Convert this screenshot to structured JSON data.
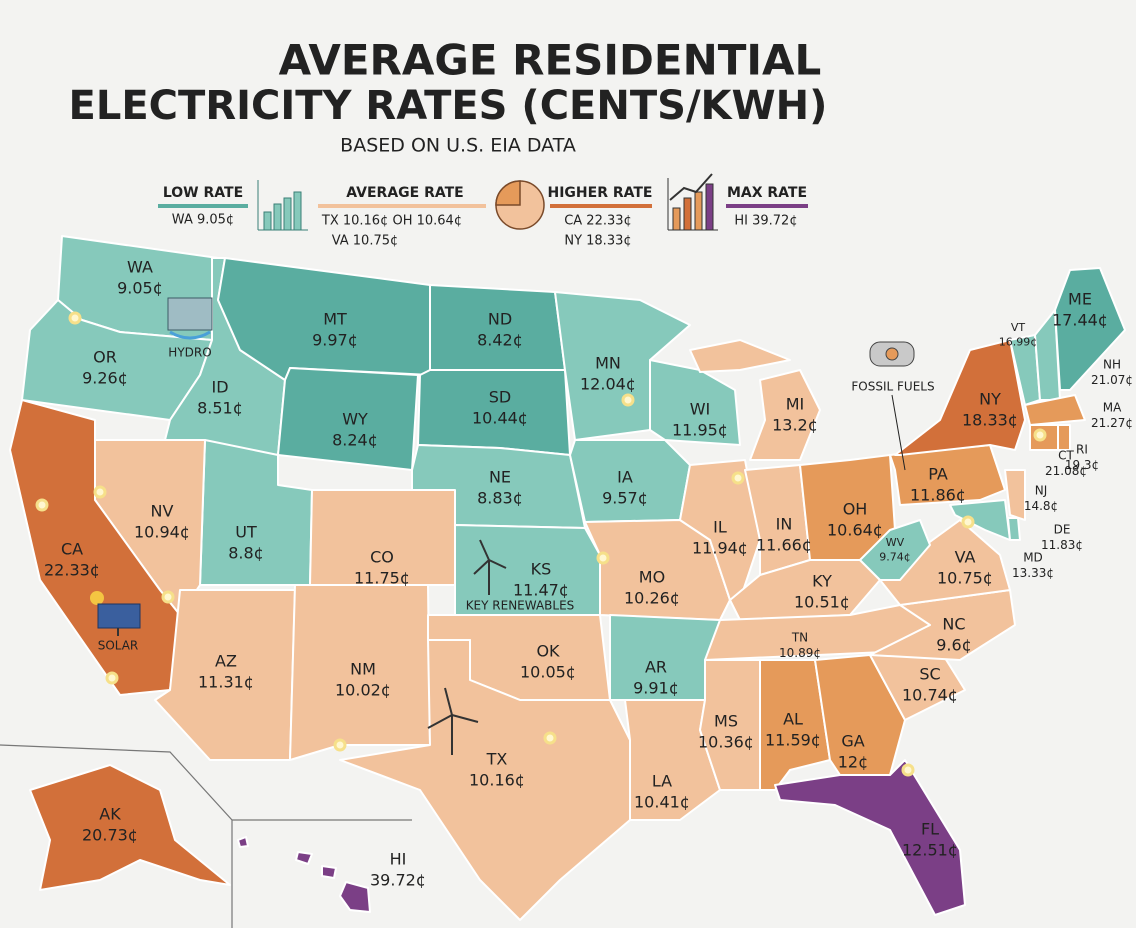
{
  "title": {
    "line1": "AVERAGE RESIDENTIAL",
    "line2": "ELECTRICITY RATES (CENTS/KWH)"
  },
  "subtitle": "BASED ON U.S. EIA DATA",
  "legend": [
    {
      "label": "LOW RATE",
      "entries": [
        "WA 9.05¢"
      ]
    },
    {
      "label": "AVERAGE RATE",
      "entries": [
        "TX 10.16¢ OH 10.64¢",
        "VA 10.75¢"
      ]
    },
    {
      "label": "HIGHER RATE",
      "entries": [
        "CA 22.33¢",
        "NY 18.33¢"
      ]
    },
    {
      "label": "MAX RATE",
      "entries": [
        "HI 39.72¢"
      ]
    }
  ],
  "states": [
    {
      "code": "WA",
      "rate": "9.05¢"
    },
    {
      "code": "OR",
      "rate": "9.26¢"
    },
    {
      "code": "ID",
      "rate": "8.51¢"
    },
    {
      "code": "MT",
      "rate": "9.97¢"
    },
    {
      "code": "WY",
      "rate": "8.24¢"
    },
    {
      "code": "ND",
      "rate": "8.42¢"
    },
    {
      "code": "SD",
      "rate": "10.44¢"
    },
    {
      "code": "NE",
      "rate": "8.83¢"
    },
    {
      "code": "MN",
      "rate": "12.04¢"
    },
    {
      "code": "WI",
      "rate": "11.95¢"
    },
    {
      "code": "IA",
      "rate": "9.57¢"
    },
    {
      "code": "UT",
      "rate": "8.8¢"
    },
    {
      "code": "NV",
      "rate": "10.94¢"
    },
    {
      "code": "CA",
      "rate": "22.33¢"
    },
    {
      "code": "AZ",
      "rate": "11.31¢"
    },
    {
      "code": "CO",
      "rate": "11.75¢"
    },
    {
      "code": "NM",
      "rate": "10.02¢"
    },
    {
      "code": "KS",
      "rate": "11.47¢"
    },
    {
      "code": "OK",
      "rate": "10.05¢"
    },
    {
      "code": "TX",
      "rate": "10.16¢"
    },
    {
      "code": "MO",
      "rate": "10.26¢"
    },
    {
      "code": "AR",
      "rate": "9.91¢"
    },
    {
      "code": "LA",
      "rate": "10.41¢"
    },
    {
      "code": "IL",
      "rate": "11.94¢"
    },
    {
      "code": "IN",
      "rate": "11.66¢"
    },
    {
      "code": "MI",
      "rate": "13.2¢"
    },
    {
      "code": "OH",
      "rate": "10.64¢"
    },
    {
      "code": "KY",
      "rate": "10.51¢"
    },
    {
      "code": "TN",
      "rate": "10.89¢"
    },
    {
      "code": "MS",
      "rate": "10.36¢"
    },
    {
      "code": "AL",
      "rate": "11.59¢"
    },
    {
      "code": "GA",
      "rate": "12¢"
    },
    {
      "code": "FL",
      "rate": "12.51¢"
    },
    {
      "code": "SC",
      "rate": "10.74¢"
    },
    {
      "code": "NC",
      "rate": "9.6¢"
    },
    {
      "code": "VA",
      "rate": "10.75¢"
    },
    {
      "code": "WV",
      "rate": "9.74¢"
    },
    {
      "code": "PA",
      "rate": "11.86¢"
    },
    {
      "code": "NY",
      "rate": "18.33¢"
    },
    {
      "code": "NJ",
      "rate": "14.8¢"
    },
    {
      "code": "MD",
      "rate": "13.33¢"
    },
    {
      "code": "DE",
      "rate": "11.83¢"
    },
    {
      "code": "VT",
      "rate": "16.99¢"
    },
    {
      "code": "NH",
      "rate": "21.07¢"
    },
    {
      "code": "ME",
      "rate": "17.44¢"
    },
    {
      "code": "MA",
      "rate": "21.27¢"
    },
    {
      "code": "CT",
      "rate": "21.08¢"
    },
    {
      "code": "RI",
      "rate": "19.3¢"
    },
    {
      "code": "AK",
      "rate": "20.73¢"
    },
    {
      "code": "HI",
      "rate": "39.72¢"
    }
  ],
  "annotations": [
    "HYDRO",
    "SOLAR",
    "KEY RENEWABLES",
    "FOSSIL FUELS"
  ]
}
